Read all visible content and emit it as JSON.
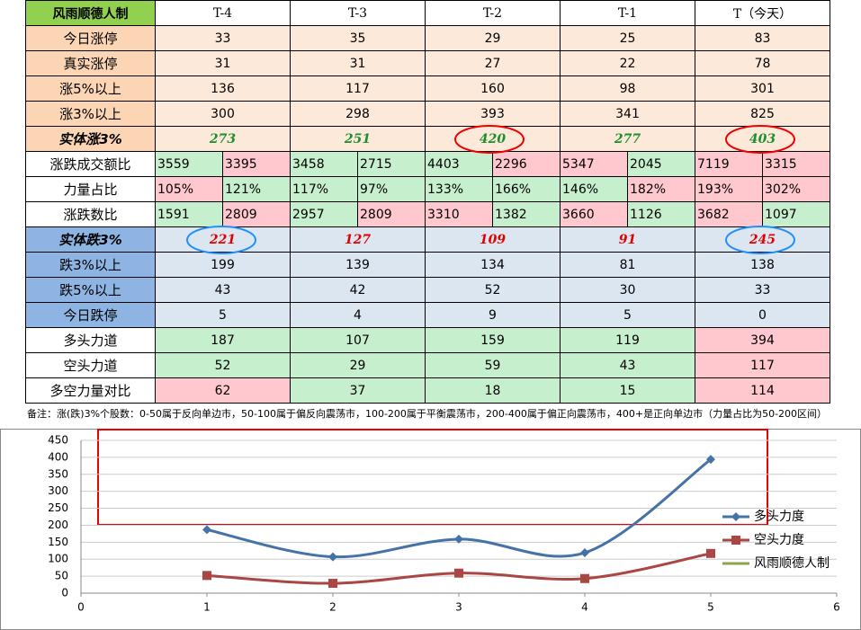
{
  "table": {
    "header": [
      "风雨顺德人制",
      "T-4",
      "T-3",
      "T-2",
      "T-1",
      "T（今天）"
    ],
    "rows": [
      {
        "label": "今日涨停",
        "values": [
          33,
          35,
          29,
          25,
          83
        ]
      },
      {
        "label": "真实涨停",
        "values": [
          31,
          31,
          27,
          22,
          78
        ]
      },
      {
        "label": "涨5%以上",
        "values": [
          136,
          117,
          160,
          98,
          301
        ]
      },
      {
        "label": "涨3%以上",
        "values": [
          300,
          298,
          393,
          341,
          825
        ]
      },
      {
        "label": "实体涨3%",
        "values": [
          273,
          251,
          420,
          277,
          403
        ]
      },
      {
        "label": "涨跌成交额比",
        "values": [
          [
            3559,
            3395
          ],
          [
            3458,
            2715
          ],
          [
            4403,
            2296
          ],
          [
            5347,
            2045
          ],
          [
            7119,
            3315
          ]
        ]
      },
      {
        "label": "力量占比",
        "values": [
          [
            "105%",
            "121%"
          ],
          [
            "117%",
            "97%"
          ],
          [
            "133%",
            "166%"
          ],
          [
            "146%",
            "182%"
          ],
          [
            "193%",
            "302%"
          ]
        ]
      },
      {
        "label": "涨跌数比",
        "values": [
          [
            1591,
            2809
          ],
          [
            2957,
            2809
          ],
          [
            3310,
            1382
          ],
          [
            3660,
            1126
          ],
          [
            3682,
            1097
          ]
        ]
      },
      {
        "label": "实体跌3%",
        "values": [
          221,
          127,
          109,
          91,
          245
        ]
      },
      {
        "label": "跌3%以上",
        "values": [
          199,
          139,
          134,
          81,
          138
        ]
      },
      {
        "label": "跌5%以上",
        "values": [
          43,
          42,
          52,
          30,
          33
        ]
      },
      {
        "label": "今日跌停",
        "values": [
          5,
          4,
          9,
          5,
          0
        ]
      },
      {
        "label": "多头力道",
        "values": [
          187,
          107,
          159,
          119,
          394
        ]
      },
      {
        "label": "空头力道",
        "values": [
          52,
          29,
          59,
          43,
          117
        ]
      },
      {
        "label": "多空力量对比",
        "values": [
          62,
          37,
          18,
          15,
          114
        ]
      }
    ],
    "note": "备注：涨(跌)3%个股数：0-50属于反向单边市，50-100属于偏反向震荡市，100-200属于平衡震荡市，200-400属于偏正向震荡市，400+是正向单边市（力量占比为50-200区间）"
  },
  "chart_data": {
    "type": "line",
    "x": [
      1,
      2,
      3,
      4,
      5
    ],
    "xlim": [
      0,
      6
    ],
    "xticks": [
      0,
      1,
      2,
      3,
      4,
      5,
      6
    ],
    "ylim": [
      0,
      450
    ],
    "yticks": [
      0,
      50,
      100,
      150,
      200,
      250,
      300,
      350,
      400,
      450
    ],
    "grid": true,
    "legend": "right",
    "series": [
      {
        "name": "多头力度",
        "color": "#4572a7",
        "values": [
          187,
          107,
          159,
          119,
          394
        ]
      },
      {
        "name": "空头力度",
        "color": "#aa4643",
        "values": [
          52,
          29,
          59,
          43,
          117
        ]
      },
      {
        "name": "风雨顺德人制",
        "color": "#89a54e"
      }
    ]
  }
}
